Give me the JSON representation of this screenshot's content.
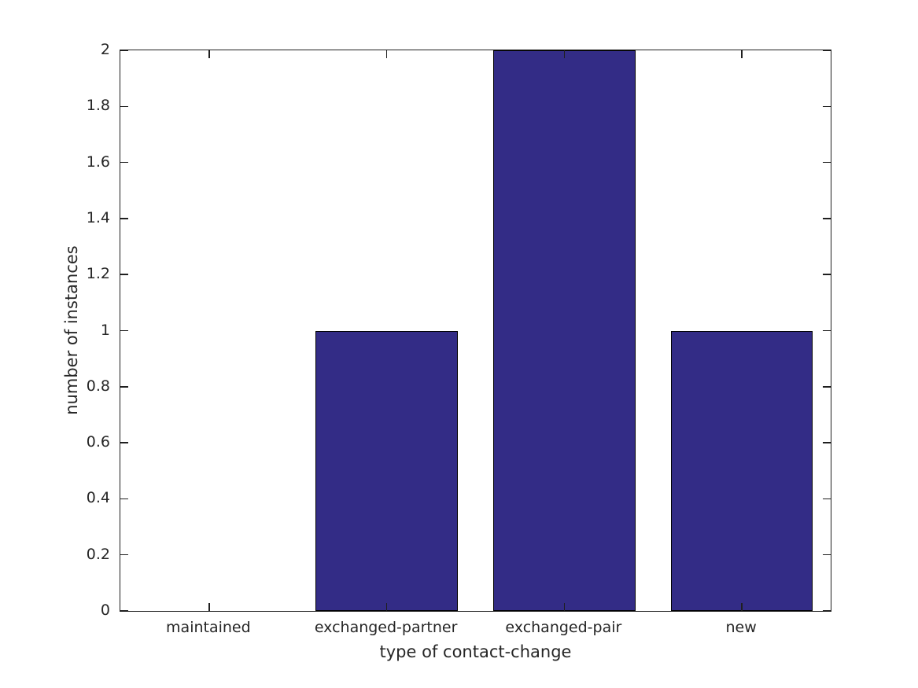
{
  "figure": {
    "background_color": "#ffffff"
  },
  "chart_data": {
    "type": "bar",
    "title": "",
    "xlabel": "type of contact-change",
    "ylabel": "number of instances",
    "categories": [
      "maintained",
      "exchanged-partner",
      "exchanged-pair",
      "new"
    ],
    "values": [
      0,
      1,
      2,
      1
    ],
    "ylim": [
      0,
      2
    ],
    "yticks": [
      0,
      0.2,
      0.4,
      0.6,
      0.8,
      1,
      1.2,
      1.4,
      1.6,
      1.8,
      2
    ],
    "ytick_labels": [
      "0",
      "0.2",
      "0.4",
      "0.6",
      "0.8",
      "1",
      "1.2",
      "1.4",
      "1.6",
      "1.8",
      "2"
    ],
    "bar_color": "#332C86",
    "bar_edge_color": "#000000",
    "axis_color": "#1f1f1f",
    "text_color": "#262626",
    "bar_width_ratio": 0.8,
    "grid": false,
    "legend": null,
    "box": true,
    "tick_direction": "in"
  }
}
